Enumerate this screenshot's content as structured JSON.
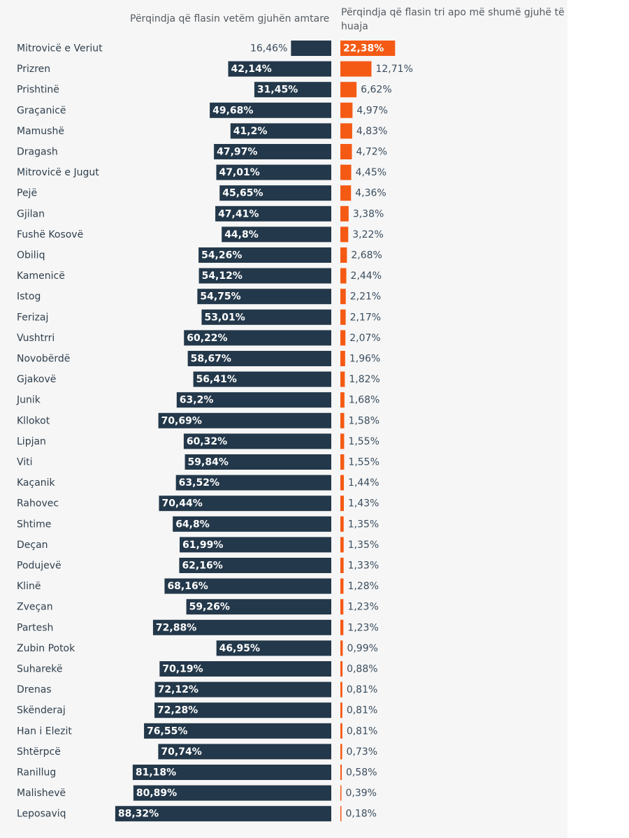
{
  "chart_data": {
    "type": "bar",
    "headers": {
      "left": "Përqindja që flasin vetëm gjuhën amtare",
      "right": "Përqindja që flasin tri apo më shumë gjuhë të huaja"
    },
    "colors": {
      "left": "#23384a",
      "right": "#f55a14",
      "label_dark": "#3a4d5e",
      "label_light": "#ffffff"
    },
    "categories": [
      "Mitrovicë e Veriut",
      "Prizren",
      "Prishtinë",
      "Graçanicë",
      "Mamushë",
      "Dragash",
      "Mitrovicë e Jugut",
      "Pejë",
      "Gjilan",
      "Fushë Kosovë",
      "Obiliq",
      "Kamenicë",
      "Istog",
      "Ferizaj",
      "Vushtrri",
      "Novobërdë",
      "Gjakovë",
      "Junik",
      "Kllokot",
      "Lipjan",
      "Viti",
      "Kaçanik",
      "Rahovec",
      "Shtime",
      "Deçan",
      "Podujevë",
      "Klinë",
      "Zveçan",
      "Partesh",
      "Zubin Potok",
      "Suharekë",
      "Drenas",
      "Skënderaj",
      "Han i Elezit",
      "Shtërpcë",
      "Ranillug",
      "Malishevë",
      "Leposaviq"
    ],
    "series": [
      {
        "name": "Përqindja që flasin vetëm gjuhën amtare",
        "values": [
          16.46,
          42.14,
          31.45,
          49.68,
          41.2,
          47.97,
          47.01,
          45.65,
          47.41,
          44.8,
          54.26,
          54.12,
          54.75,
          53.01,
          60.22,
          58.67,
          56.41,
          63.2,
          70.69,
          60.32,
          59.84,
          63.52,
          70.44,
          64.8,
          61.99,
          62.16,
          68.16,
          59.26,
          72.88,
          46.95,
          70.19,
          72.12,
          72.28,
          76.55,
          70.74,
          81.18,
          80.89,
          88.32
        ],
        "labels": [
          "16,46%",
          "42,14%",
          "31,45%",
          "49,68%",
          "41,2%",
          "47,97%",
          "47,01%",
          "45,65%",
          "47,41%",
          "44,8%",
          "54,26%",
          "54,12%",
          "54,75%",
          "53,01%",
          "60,22%",
          "58,67%",
          "56,41%",
          "63,2%",
          "70,69%",
          "60,32%",
          "59,84%",
          "63,52%",
          "70,44%",
          "64,8%",
          "61,99%",
          "62,16%",
          "68,16%",
          "59,26%",
          "72,88%",
          "46,95%",
          "70,19%",
          "72,12%",
          "72,28%",
          "76,55%",
          "70,74%",
          "81,18%",
          "80,89%",
          "88,32%"
        ]
      },
      {
        "name": "Përqindja që flasin tri apo më shumë gjuhë të huaja",
        "values": [
          22.38,
          12.71,
          6.62,
          4.97,
          4.83,
          4.72,
          4.45,
          4.36,
          3.38,
          3.22,
          2.68,
          2.44,
          2.21,
          2.17,
          2.07,
          1.96,
          1.82,
          1.68,
          1.58,
          1.55,
          1.55,
          1.44,
          1.43,
          1.35,
          1.35,
          1.33,
          1.28,
          1.23,
          1.23,
          0.99,
          0.88,
          0.81,
          0.81,
          0.81,
          0.73,
          0.58,
          0.39,
          0.18
        ],
        "labels": [
          "22,38%",
          "12,71%",
          "6,62%",
          "4,97%",
          "4,83%",
          "4,72%",
          "4,45%",
          "4,36%",
          "3,38%",
          "3,22%",
          "2,68%",
          "2,44%",
          "2,21%",
          "2,17%",
          "2,07%",
          "1,96%",
          "1,82%",
          "1,68%",
          "1,58%",
          "1,55%",
          "1,55%",
          "1,44%",
          "1,43%",
          "1,35%",
          "1,35%",
          "1,33%",
          "1,28%",
          "1,23%",
          "1,23%",
          "0,99%",
          "0,88%",
          "0,81%",
          "0,81%",
          "0,81%",
          "0,73%",
          "0,58%",
          "0,39%",
          "0,18%"
        ]
      }
    ]
  }
}
